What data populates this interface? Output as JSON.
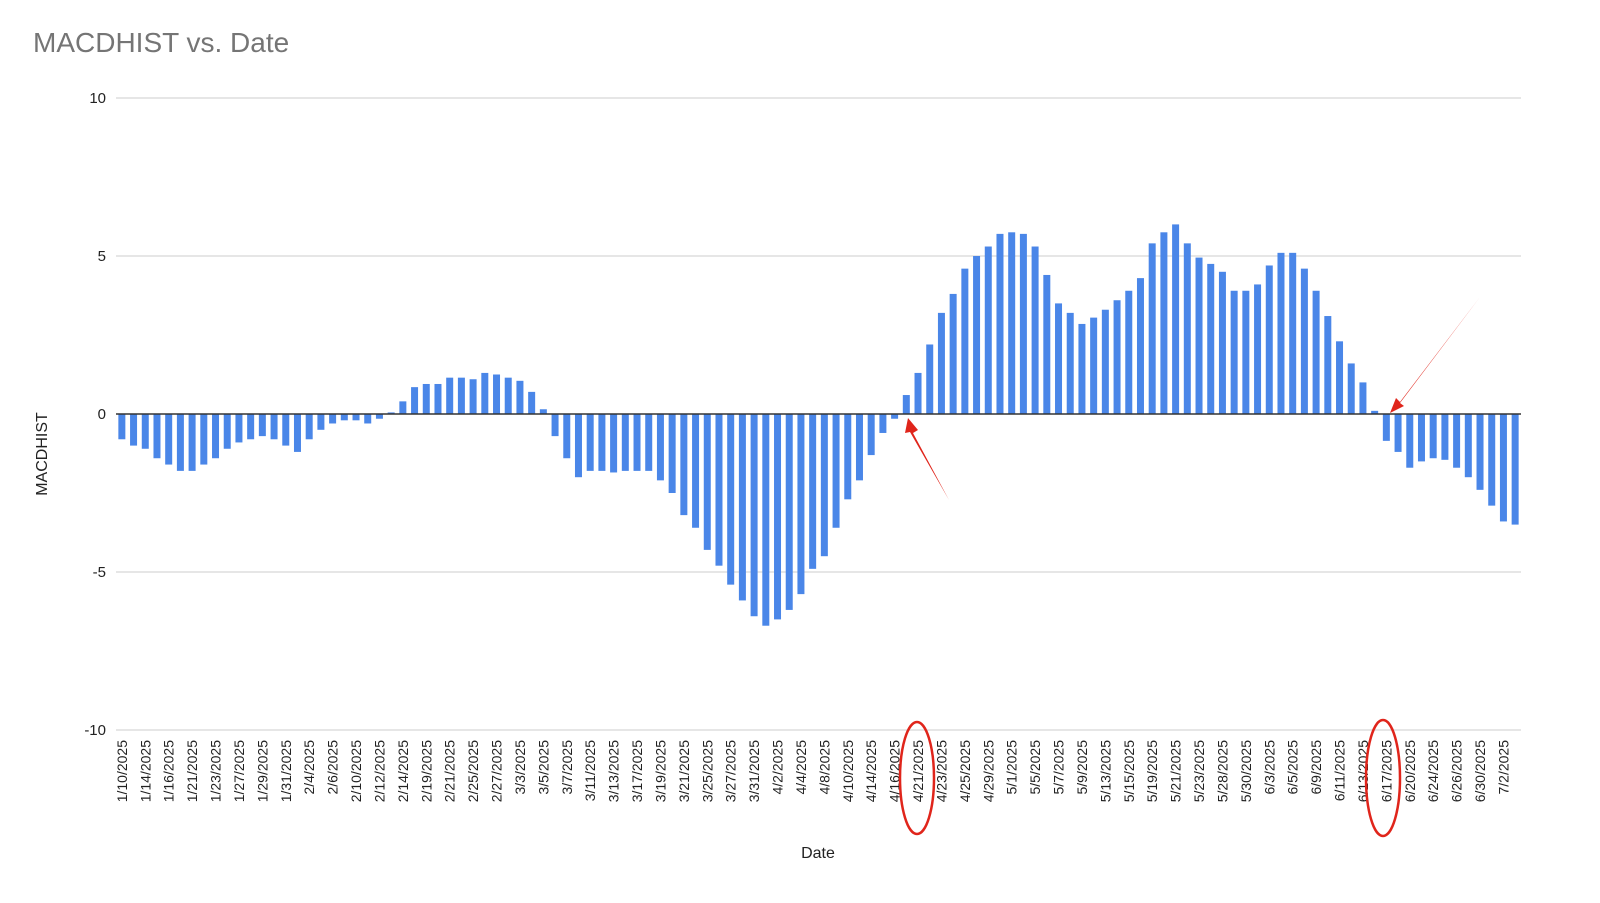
{
  "chart_data": {
    "type": "bar",
    "title": "MACDHIST vs. Date",
    "x_label": "Date",
    "y_label": "MACDHIST",
    "categories": [
      "1/10/2025",
      null,
      "1/14/2025",
      null,
      "1/16/2025",
      null,
      "1/21/2025",
      null,
      "1/23/2025",
      null,
      "1/27/2025",
      null,
      "1/29/2025",
      null,
      "1/31/2025",
      null,
      "2/4/2025",
      null,
      "2/6/2025",
      null,
      "2/10/2025",
      null,
      "2/12/2025",
      null,
      "2/14/2025",
      null,
      "2/19/2025",
      null,
      "2/21/2025",
      null,
      "2/25/2025",
      null,
      "2/27/2025",
      null,
      "3/3/2025",
      null,
      "3/5/2025",
      null,
      "3/7/2025",
      null,
      "3/11/2025",
      null,
      "3/13/2025",
      null,
      "3/17/2025",
      null,
      "3/19/2025",
      null,
      "3/21/2025",
      null,
      "3/25/2025",
      null,
      "3/27/2025",
      null,
      "3/31/2025",
      null,
      "4/2/2025",
      null,
      "4/4/2025",
      null,
      "4/8/2025",
      null,
      "4/10/2025",
      null,
      "4/14/2025",
      null,
      "4/16/2025",
      null,
      "4/21/2025",
      null,
      "4/23/2025",
      null,
      "4/25/2025",
      null,
      "4/29/2025",
      null,
      "5/1/2025",
      null,
      "5/5/2025",
      null,
      "5/7/2025",
      null,
      "5/9/2025",
      null,
      "5/13/2025",
      null,
      "5/15/2025",
      null,
      "5/19/2025",
      null,
      "5/21/2025",
      null,
      "5/23/2025",
      null,
      "5/28/2025",
      null,
      "5/30/2025",
      null,
      "6/3/2025",
      null,
      "6/5/2025",
      null,
      "6/9/2025",
      null,
      "6/11/2025",
      null,
      "6/13/2025",
      null,
      "6/17/2025",
      null,
      "6/20/2025",
      null,
      "6/24/2025",
      null,
      "6/26/2025",
      null,
      "6/30/2025",
      null,
      "7/2/2025",
      null
    ],
    "values": [
      -0.8,
      -1.0,
      -1.1,
      -1.4,
      -1.6,
      -1.8,
      -1.8,
      -1.6,
      -1.4,
      -1.1,
      -0.9,
      -0.8,
      -0.7,
      -0.8,
      -1.0,
      -1.2,
      -0.8,
      -0.5,
      -0.3,
      -0.2,
      -0.2,
      -0.3,
      -0.15,
      0.05,
      0.4,
      0.85,
      0.95,
      0.95,
      1.15,
      1.15,
      1.1,
      1.3,
      1.25,
      1.15,
      1.05,
      0.7,
      0.15,
      -0.7,
      -1.4,
      -2.0,
      -1.8,
      -1.8,
      -1.85,
      -1.8,
      -1.8,
      -1.8,
      -2.1,
      -2.5,
      -3.2,
      -3.6,
      -4.3,
      -4.8,
      -5.4,
      -5.9,
      -6.4,
      -6.7,
      -6.5,
      -6.2,
      -5.7,
      -4.9,
      -4.5,
      -3.6,
      -2.7,
      -2.1,
      -1.3,
      -0.6,
      -0.15,
      0.6,
      1.3,
      2.2,
      3.2,
      3.8,
      4.6,
      5.0,
      5.3,
      5.7,
      5.75,
      5.7,
      5.3,
      4.4,
      3.5,
      3.2,
      2.85,
      3.05,
      3.3,
      3.6,
      3.9,
      4.3,
      5.4,
      5.75,
      6.0,
      5.4,
      4.95,
      4.75,
      4.5,
      3.9,
      3.9,
      4.1,
      4.7,
      5.1,
      5.1,
      4.6,
      3.9,
      3.1,
      2.3,
      1.6,
      1.0,
      0.1,
      -0.85,
      -1.2,
      -1.7,
      -1.5,
      -1.4,
      -1.45,
      -1.7,
      -2.0,
      -2.4,
      -2.9,
      -3.4,
      -3.5
    ],
    "color": "#4a86e8",
    "ylim": [
      -10,
      10
    ],
    "yticks": [
      -10,
      -5,
      0,
      5,
      10
    ],
    "grid": true
  }
}
